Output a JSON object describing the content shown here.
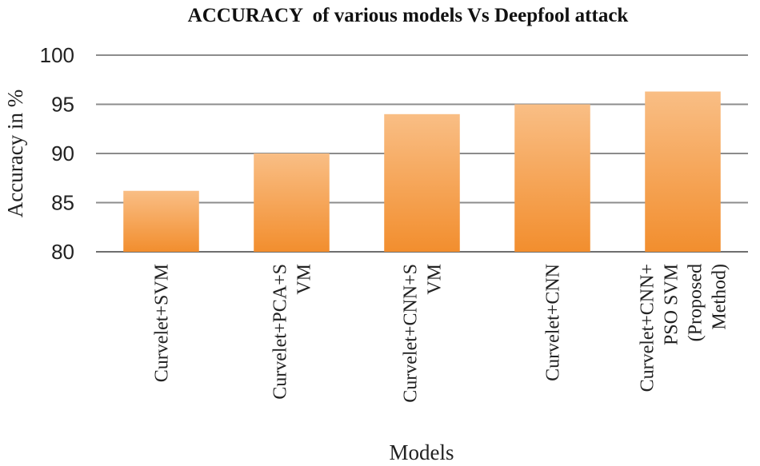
{
  "chart_data": {
    "type": "bar",
    "title": "ACCURACY  of various models Vs Deepfool attack",
    "xlabel": "Models",
    "ylabel": "Accuracy in %",
    "ylim": [
      80,
      100
    ],
    "yticks": [
      80,
      85,
      90,
      95,
      100
    ],
    "grid": true,
    "legend": "none",
    "categories": [
      [
        "Curvelet+SVM"
      ],
      [
        "Curvelet+PCA+S",
        "VM"
      ],
      [
        "Curvelet+CNN+S",
        "VM"
      ],
      [
        "Curvelet+CNN"
      ],
      [
        "Curvelet+CNN+",
        "PSO SVM",
        "(Proposed",
        "Method)"
      ]
    ],
    "values": [
      86.2,
      90.0,
      94.0,
      95.0,
      96.3
    ],
    "colors": {
      "bar_top": "#f9be85",
      "bar_bottom": "#f28e2e",
      "grid": "#8c8c8c",
      "axis": "#6e6e6e"
    }
  }
}
